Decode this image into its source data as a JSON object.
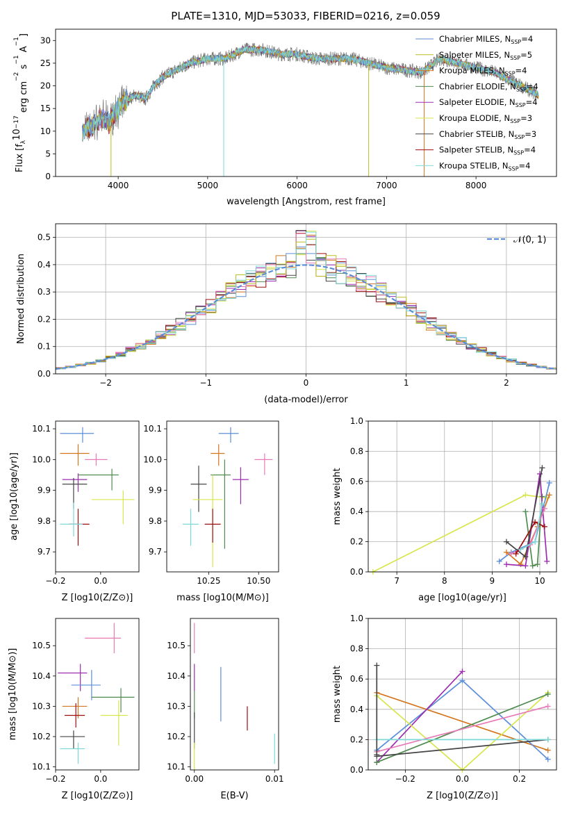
{
  "figure": {
    "title": "PLATE=1310, MJD=53033, FIBERID=0216, z=0.059"
  },
  "colors": {
    "Chabrier MILES": "#5b8dd9",
    "Salpeter MILES": "#bcbd22",
    "Kroupa MILES": "#d4761e",
    "Chabrier ELODIE": "#4f8a4f",
    "Salpeter ELODIE": "#9c2bb0",
    "Kroupa ELODIE": "#d7e64a",
    "Chabrier STELIB": "#444444",
    "Salpeter STELIB": "#9b0c0c",
    "Kroupa STELIB": "#7fd8d8",
    "Pink": "#e87ab8"
  },
  "chart_data": [
    {
      "id": "spectrum",
      "type": "line",
      "title": "PLATE=1310, MJD=53033, FIBERID=0216, z=0.059",
      "xlabel": "wavelength [Angstrom, rest frame]",
      "ylabel": "Flux [f",
      "ylabel_parts": [
        "Flux [f",
        "λ",
        "10",
        "−17",
        " erg cm",
        "−2",
        " s",
        "−1",
        " A",
        "−1",
        "]"
      ],
      "xlim": [
        3300,
        8900
      ],
      "ylim": [
        0,
        32.5
      ],
      "xticks": [
        4000,
        5000,
        6000,
        7000,
        8000
      ],
      "yticks": [
        0,
        5,
        10,
        15,
        20,
        25,
        30
      ],
      "grid": false,
      "legend_position": "top-right",
      "legend": [
        {
          "name": "Chabrier MILES",
          "sub": "SSP",
          "n": "=4"
        },
        {
          "name": "Salpeter MILES",
          "sub": "SSP",
          "n": "=5"
        },
        {
          "name": "Kroupa MILES",
          "sub": "SSP",
          "n": "=4"
        },
        {
          "name": "Chabrier ELODIE",
          "sub": "SSP",
          "n": "=4"
        },
        {
          "name": "Salpeter ELODIE",
          "sub": "SSP",
          "n": "=4"
        },
        {
          "name": "Kroupa ELODIE",
          "sub": "SSP",
          "n": "=3"
        },
        {
          "name": "Chabrier STELIB",
          "sub": "SSP",
          "n": "=3"
        },
        {
          "name": "Salpeter STELIB",
          "sub": "SSP",
          "n": "=4"
        },
        {
          "name": "Kroupa STELIB",
          "sub": "SSP",
          "n": "=4"
        }
      ],
      "continuum": [
        [
          3600,
          10
        ],
        [
          3700,
          11
        ],
        [
          3800,
          13
        ],
        [
          3900,
          12
        ],
        [
          4000,
          15
        ],
        [
          4100,
          17
        ],
        [
          4200,
          18
        ],
        [
          4300,
          17
        ],
        [
          4400,
          20
        ],
        [
          4500,
          22
        ],
        [
          4600,
          23
        ],
        [
          4700,
          24
        ],
        [
          4800,
          25
        ],
        [
          5000,
          26
        ],
        [
          5200,
          26
        ],
        [
          5400,
          28
        ],
        [
          5600,
          28
        ],
        [
          5800,
          27
        ],
        [
          6000,
          27
        ],
        [
          6200,
          26
        ],
        [
          6400,
          26
        ],
        [
          6600,
          26
        ],
        [
          6800,
          25
        ],
        [
          7000,
          24
        ],
        [
          7200,
          23.5
        ],
        [
          7400,
          23
        ],
        [
          7600,
          26
        ],
        [
          7800,
          25
        ],
        [
          8000,
          24
        ],
        [
          8200,
          23
        ],
        [
          8400,
          21
        ],
        [
          8600,
          19
        ],
        [
          8700,
          18
        ]
      ]
    },
    {
      "id": "residuals",
      "type": "step",
      "xlabel": "(data-model)/error",
      "ylabel": "Normed distribution",
      "xlim": [
        -2.5,
        2.5
      ],
      "ylim": [
        0,
        0.55
      ],
      "xticks": [
        -2,
        -1,
        0,
        1,
        2
      ],
      "yticks": [
        0.0,
        0.1,
        0.2,
        0.3,
        0.4,
        0.5
      ],
      "grid": true,
      "legend_position": "top-right",
      "legend_label": "𝒩(0, 1)",
      "gaussian": {
        "mu": 0,
        "sigma": 1
      }
    },
    {
      "id": "age_vs_z",
      "type": "errorbar",
      "xlabel": "Z [log10(Z/Z⊙)]",
      "ylabel": "age  [log10(age/yr)]",
      "xlim": [
        -0.2,
        0.17
      ],
      "ylim": [
        9.635,
        10.125
      ],
      "xticks": [
        -0.2,
        0.0
      ],
      "yticks": [
        9.7,
        9.8,
        9.9,
        10.0,
        10.1
      ],
      "points": [
        {
          "x": -0.08,
          "y": 10.085,
          "xerr": [
            0.1,
            0.05
          ],
          "yerr": [
            0.03,
            0.02
          ],
          "color": "#5b8dd9"
        },
        {
          "x": -0.1,
          "y": 10.02,
          "xerr": [
            0.08,
            0.05
          ],
          "yerr": [
            0.04,
            0.03
          ],
          "color": "#d4761e"
        },
        {
          "x": -0.02,
          "y": 10.0,
          "xerr": [
            0.05,
            0.05
          ],
          "yerr": [
            0.02,
            0.02
          ],
          "color": "#e87ab8"
        },
        {
          "x": 0.05,
          "y": 9.95,
          "xerr": [
            0.15,
            0.03
          ],
          "yerr": [
            0.05,
            0.02
          ],
          "color": "#4f8a4f"
        },
        {
          "x": -0.1,
          "y": 9.935,
          "xerr": [
            0.07,
            0.04
          ],
          "yerr": [
            0.04,
            0.02
          ],
          "color": "#9c2bb0"
        },
        {
          "x": -0.12,
          "y": 9.92,
          "xerr": [
            0.05,
            0.06
          ],
          "yerr": [
            0.08,
            0.02
          ],
          "color": "#444444"
        },
        {
          "x": 0.1,
          "y": 9.87,
          "xerr": [
            0.14,
            0.05
          ],
          "yerr": [
            0.08,
            0.03
          ],
          "color": "#d7e64a"
        },
        {
          "x": -0.1,
          "y": 9.79,
          "xerr": [
            0.04,
            0.05
          ],
          "yerr": [
            0.07,
            0.05
          ],
          "color": "#9b0c0c"
        },
        {
          "x": -0.12,
          "y": 9.79,
          "xerr": [
            0.06,
            0.04
          ],
          "yerr": [
            0.04,
            0.07
          ],
          "color": "#7fd8d8"
        }
      ]
    },
    {
      "id": "age_vs_mass",
      "type": "errorbar",
      "xlabel": "mass [log10(M/M⊙)]",
      "ylabel": "",
      "xlim": [
        10.04,
        10.6
      ],
      "ylim": [
        9.635,
        10.125
      ],
      "xticks": [
        10.25,
        10.5
      ],
      "yticks": [
        9.7,
        9.8,
        9.9,
        10.0,
        10.1
      ],
      "points": [
        {
          "x": 10.36,
          "y": 10.085,
          "xerr": [
            0.06,
            0.04
          ],
          "yerr": [
            0.03,
            0.02
          ],
          "color": "#5b8dd9"
        },
        {
          "x": 10.3,
          "y": 10.02,
          "xerr": [
            0.04,
            0.03
          ],
          "yerr": [
            0.04,
            0.03
          ],
          "color": "#d4761e"
        },
        {
          "x": 10.53,
          "y": 10.0,
          "xerr": [
            0.05,
            0.04
          ],
          "yerr": [
            0.05,
            0.02
          ],
          "color": "#e87ab8"
        },
        {
          "x": 10.33,
          "y": 9.95,
          "xerr": [
            0.07,
            0.03
          ],
          "yerr": [
            0.24,
            0.05
          ],
          "color": "#4f8a4f"
        },
        {
          "x": 10.41,
          "y": 9.935,
          "xerr": [
            0.04,
            0.04
          ],
          "yerr": [
            0.08,
            0.04
          ],
          "color": "#9c2bb0"
        },
        {
          "x": 10.2,
          "y": 9.92,
          "xerr": [
            0.04,
            0.04
          ],
          "yerr": [
            0.09,
            0.06
          ],
          "color": "#444444"
        },
        {
          "x": 10.27,
          "y": 9.87,
          "xerr": [
            0.1,
            0.05
          ],
          "yerr": [
            0.22,
            0.08
          ],
          "color": "#d7e64a"
        },
        {
          "x": 10.27,
          "y": 9.79,
          "xerr": [
            0.04,
            0.04
          ],
          "yerr": [
            0.06,
            0.05
          ],
          "color": "#9b0c0c"
        },
        {
          "x": 10.16,
          "y": 9.79,
          "xerr": [
            0.04,
            0.04
          ],
          "yerr": [
            0.07,
            0.05
          ],
          "color": "#7fd8d8"
        }
      ]
    },
    {
      "id": "weight_vs_age",
      "type": "line",
      "xlabel": "age  [log10(age/yr)]",
      "ylabel": "mass weight",
      "xlim": [
        6.4,
        10.35
      ],
      "ylim": [
        0,
        1.0
      ],
      "xticks": [
        7,
        8,
        9,
        10
      ],
      "yticks": [
        0.0,
        0.2,
        0.4,
        0.6,
        0.8,
        1.0
      ],
      "grid": true,
      "series": [
        {
          "color": "#d7e64a",
          "x": [
            6.5,
            9.7,
            10.15
          ],
          "y": [
            0.0,
            0.51,
            0.49
          ]
        },
        {
          "color": "#5b8dd9",
          "x": [
            9.15,
            9.4,
            9.9,
            10.2
          ],
          "y": [
            0.07,
            0.13,
            0.2,
            0.59
          ]
        },
        {
          "color": "#d4761e",
          "x": [
            9.3,
            9.6,
            9.95,
            10.2
          ],
          "y": [
            0.13,
            0.05,
            0.3,
            0.51
          ]
        },
        {
          "color": "#4f8a4f",
          "x": [
            9.7,
            9.85,
            9.95,
            10.05
          ],
          "y": [
            0.4,
            0.04,
            0.05,
            0.5
          ]
        },
        {
          "color": "#9c2bb0",
          "x": [
            9.3,
            9.7,
            10.0,
            10.15
          ],
          "y": [
            0.05,
            0.04,
            0.65,
            0.07
          ]
        },
        {
          "color": "#444444",
          "x": [
            9.3,
            9.7,
            10.05
          ],
          "y": [
            0.2,
            0.1,
            0.69
          ]
        },
        {
          "color": "#e87ab8",
          "x": [
            9.4,
            9.8,
            10.1
          ],
          "y": [
            0.12,
            0.18,
            0.42
          ]
        },
        {
          "color": "#9b0c0c",
          "x": [
            9.5,
            9.9,
            10.1
          ],
          "y": [
            0.12,
            0.33,
            0.3
          ]
        },
        {
          "color": "#7fd8d8",
          "x": [
            9.6,
            9.9,
            10.05
          ],
          "y": [
            0.15,
            0.2,
            0.45
          ]
        }
      ]
    },
    {
      "id": "mass_vs_z",
      "type": "errorbar",
      "xlabel": "Z [log10(Z/Z⊙)]",
      "ylabel": "mass [log10(M/M⊙)]",
      "xlim": [
        -0.2,
        0.17
      ],
      "ylim": [
        10.09,
        10.59
      ],
      "xticks": [
        -0.2,
        0.0
      ],
      "yticks": [
        10.1,
        10.2,
        10.3,
        10.4,
        10.5
      ],
      "points": [
        {
          "x": 0.06,
          "y": 10.525,
          "xerr": [
            0.13,
            0.03
          ],
          "yerr": [
            0.05,
            0.05
          ],
          "color": "#e87ab8"
        },
        {
          "x": -0.09,
          "y": 10.41,
          "xerr": [
            0.1,
            0.03
          ],
          "yerr": [
            0.06,
            0.03
          ],
          "color": "#9c2bb0"
        },
        {
          "x": -0.04,
          "y": 10.37,
          "xerr": [
            0.09,
            0.04
          ],
          "yerr": [
            0.05,
            0.05
          ],
          "color": "#5b8dd9"
        },
        {
          "x": 0.09,
          "y": 10.33,
          "xerr": [
            0.13,
            0.06
          ],
          "yerr": [
            0.05,
            0.03
          ],
          "color": "#4f8a4f"
        },
        {
          "x": -0.1,
          "y": 10.3,
          "xerr": [
            0.07,
            0.04
          ],
          "yerr": [
            0.04,
            0.03
          ],
          "color": "#d4761e"
        },
        {
          "x": 0.08,
          "y": 10.27,
          "xerr": [
            0.08,
            0.04
          ],
          "yerr": [
            0.1,
            0.05
          ],
          "color": "#d7e64a"
        },
        {
          "x": -0.11,
          "y": 10.27,
          "xerr": [
            0.05,
            0.04
          ],
          "yerr": [
            0.04,
            0.04
          ],
          "color": "#9b0c0c"
        },
        {
          "x": -0.12,
          "y": 10.2,
          "xerr": [
            0.06,
            0.05
          ],
          "yerr": [
            0.04,
            0.02
          ],
          "color": "#444444"
        },
        {
          "x": -0.1,
          "y": 10.16,
          "xerr": [
            0.08,
            0.03
          ],
          "yerr": [
            0.05,
            0.02
          ],
          "color": "#7fd8d8"
        }
      ]
    },
    {
      "id": "mass_vs_ebv",
      "type": "errorbar",
      "xlabel": "E(B-V)",
      "ylabel": "",
      "xlim": [
        -0.0005,
        0.0105
      ],
      "ylim": [
        10.09,
        10.59
      ],
      "xticks": [
        0.0,
        0.01
      ],
      "xtick_labels": [
        "0.00",
        "0.01"
      ],
      "yticks": [
        10.1,
        10.2,
        10.3,
        10.4,
        10.5
      ],
      "points": [
        {
          "x": 0.0,
          "y": 10.525,
          "xerr": [
            0,
            0
          ],
          "yerr": [
            0.05,
            0.05
          ],
          "color": "#e87ab8"
        },
        {
          "x": 0.0,
          "y": 10.41,
          "xerr": [
            0,
            0
          ],
          "yerr": [
            0.06,
            0.03
          ],
          "color": "#9c2bb0"
        },
        {
          "x": 0.0033,
          "y": 10.34,
          "xerr": [
            0,
            0
          ],
          "yerr": [
            0.09,
            0.09
          ],
          "color": "#5b8dd9"
        },
        {
          "x": 0.0,
          "y": 10.3,
          "xerr": [
            0,
            0
          ],
          "yerr": [
            0.04,
            0.05
          ],
          "color": "#4f8a4f"
        },
        {
          "x": 0.0,
          "y": 10.25,
          "xerr": [
            0,
            0
          ],
          "yerr": [
            0.09,
            0.03
          ],
          "color": "#444444"
        },
        {
          "x": 0.0066,
          "y": 10.26,
          "xerr": [
            0,
            0
          ],
          "yerr": [
            0.04,
            0.04
          ],
          "color": "#9b0c0c"
        },
        {
          "x": 0.01,
          "y": 10.16,
          "xerr": [
            0,
            0
          ],
          "yerr": [
            0.05,
            0.05
          ],
          "color": "#7fd8d8"
        },
        {
          "x": 0.0,
          "y": 10.14,
          "xerr": [
            0,
            0
          ],
          "yerr": [
            0.05,
            0.04
          ],
          "color": "#d7e64a"
        }
      ]
    },
    {
      "id": "weight_vs_z",
      "type": "line",
      "xlabel": "Z [log10(Z/Z⊙)]",
      "ylabel": "mass weight",
      "xlim": [
        -0.33,
        0.33
      ],
      "ylim": [
        0,
        1.0
      ],
      "xticks": [
        -0.2,
        0.0,
        0.2
      ],
      "xtick_labels": [
        "−0.2",
        "0.0",
        "0.2"
      ],
      "yticks": [
        0.0,
        0.2,
        0.4,
        0.6,
        0.8,
        1.0
      ],
      "grid": true,
      "series": [
        {
          "color": "#d4761e",
          "x": [
            -0.3,
            0.3
          ],
          "y": [
            0.51,
            0.13
          ]
        },
        {
          "color": "#5b8dd9",
          "x": [
            -0.3,
            0.0,
            0.3
          ],
          "y": [
            0.13,
            0.59,
            0.07
          ]
        },
        {
          "color": "#9c2bb0",
          "x": [
            -0.3,
            0.0
          ],
          "y": [
            0.05,
            0.65
          ]
        },
        {
          "color": "#d7e64a",
          "x": [
            -0.3,
            0.0,
            0.3
          ],
          "y": [
            0.49,
            0.0,
            0.51
          ]
        },
        {
          "color": "#4f8a4f",
          "x": [
            -0.3,
            0.3
          ],
          "y": [
            0.05,
            0.5
          ]
        },
        {
          "color": "#e87ab8",
          "x": [
            -0.3,
            0.3
          ],
          "y": [
            0.12,
            0.42
          ]
        },
        {
          "color": "#444444",
          "x": [
            -0.3,
            0.3
          ],
          "y": [
            0.09,
            0.2
          ]
        },
        {
          "color": "#7fd8d8",
          "x": [
            -0.3,
            0.3
          ],
          "y": [
            0.2,
            0.2
          ]
        },
        {
          "color": "#444444",
          "x": [
            -0.3,
            -0.3
          ],
          "y": [
            0.69,
            0.1
          ]
        }
      ]
    }
  ]
}
